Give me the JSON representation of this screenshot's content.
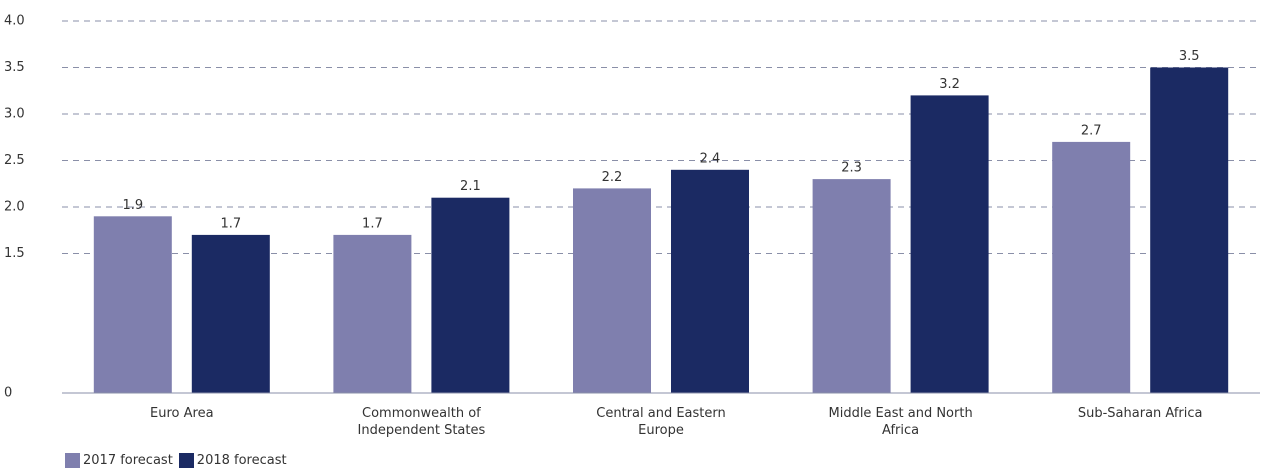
{
  "chart_data": {
    "type": "bar",
    "categories": [
      "Euro Area",
      "Commonwealth of Independent States",
      "Central and Eastern Europe",
      "Middle East and North Africa",
      "Sub-Saharan Africa"
    ],
    "series": [
      {
        "name": "2017 forecast",
        "color": "#7f7fae",
        "values": [
          1.9,
          1.7,
          2.2,
          2.3,
          2.7
        ]
      },
      {
        "name": "2018 forecast",
        "color": "#1b2a63",
        "values": [
          1.7,
          2.1,
          2.4,
          3.2,
          3.5
        ]
      }
    ],
    "ylim": [
      0,
      4
    ],
    "yticks": [
      0,
      1.5,
      {
        "value": 2,
        "label": "2.0"
      },
      2.5,
      {
        "value": 3,
        "label": "3.0"
      },
      3.5,
      {
        "value": 4,
        "label": "4.0"
      }
    ],
    "grid": true,
    "legend": "bottom-left"
  }
}
